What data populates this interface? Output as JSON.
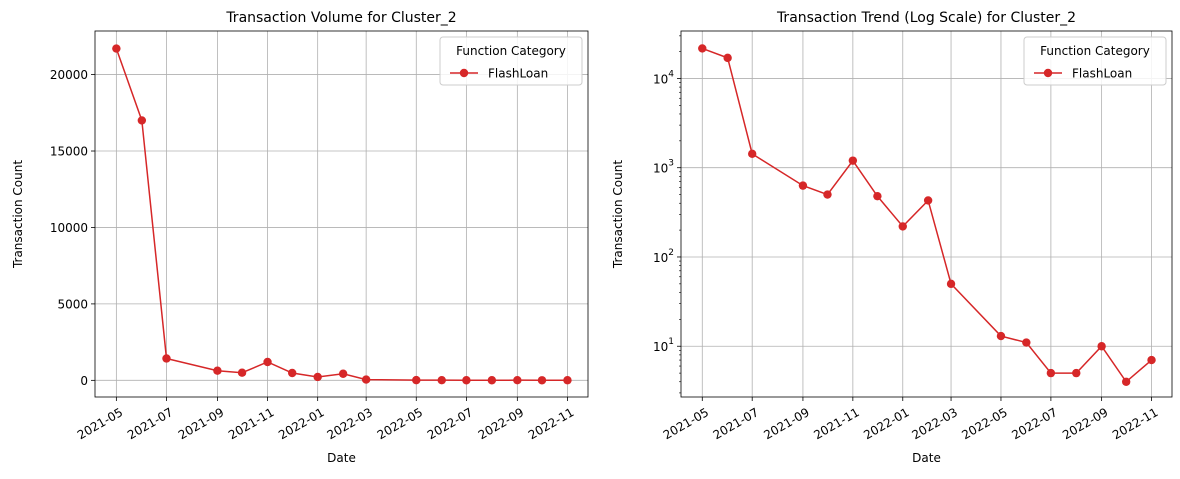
{
  "colors": {
    "series": "#d62728",
    "grid": "#b0b0b0",
    "axis": "#000000",
    "legend_border": "#cccccc"
  },
  "chart_data": [
    {
      "type": "line",
      "title": "Transaction Volume for Cluster_2",
      "xlabel": "Date",
      "ylabel": "Transaction Count",
      "xlim": [
        "2021-04-05",
        "2022-11-26"
      ],
      "ylim": [
        -1090,
        22850
      ],
      "yscale": "linear",
      "grid": true,
      "legend": {
        "title": "Function Category",
        "placement": "top-right"
      },
      "xticks": [
        "2021-05",
        "2021-07",
        "2021-09",
        "2021-11",
        "2022-01",
        "2022-03",
        "2022-05",
        "2022-07",
        "2022-09",
        "2022-11"
      ],
      "yticks": [
        0,
        5000,
        10000,
        15000,
        20000
      ],
      "ytick_labels": [
        "0",
        "5000",
        "10000",
        "15000",
        "20000"
      ],
      "x": [
        "2021-05-01",
        "2021-06-01",
        "2021-07-01",
        "2021-09-01",
        "2021-10-01",
        "2021-11-01",
        "2021-12-01",
        "2022-01-01",
        "2022-02-01",
        "2022-03-01",
        "2022-05-01",
        "2022-06-01",
        "2022-07-01",
        "2022-08-01",
        "2022-09-01",
        "2022-10-01",
        "2022-11-01"
      ],
      "series": [
        {
          "name": "FlashLoan",
          "values": [
            21700,
            17000,
            1430,
            630,
            500,
            1200,
            480,
            220,
            430,
            50,
            13,
            11,
            5,
            5,
            10,
            4,
            7
          ]
        }
      ]
    },
    {
      "type": "line",
      "title": "Transaction Trend (Log Scale) for Cluster_2",
      "xlabel": "Date",
      "ylabel": "Transaction Count",
      "xlim": [
        "2021-04-05",
        "2022-11-26"
      ],
      "ylim": [
        2.7,
        34000
      ],
      "yscale": "log",
      "grid": true,
      "legend": {
        "title": "Function Category",
        "placement": "top-right"
      },
      "xticks": [
        "2021-05",
        "2021-07",
        "2021-09",
        "2021-11",
        "2022-01",
        "2022-03",
        "2022-05",
        "2022-07",
        "2022-09",
        "2022-11"
      ],
      "yticks": [
        10,
        100,
        1000,
        10000
      ],
      "ytick_labels": [
        "10",
        "10",
        "10",
        "10"
      ],
      "ytick_exponents": [
        "1",
        "2",
        "3",
        "4"
      ],
      "x": [
        "2021-05-01",
        "2021-06-01",
        "2021-07-01",
        "2021-09-01",
        "2021-10-01",
        "2021-11-01",
        "2021-12-01",
        "2022-01-01",
        "2022-02-01",
        "2022-03-01",
        "2022-05-01",
        "2022-06-01",
        "2022-07-01",
        "2022-08-01",
        "2022-09-01",
        "2022-10-01",
        "2022-11-01"
      ],
      "series": [
        {
          "name": "FlashLoan",
          "values": [
            21700,
            17000,
            1430,
            630,
            500,
            1200,
            480,
            220,
            430,
            50,
            13,
            11,
            5,
            5,
            10,
            4,
            7
          ]
        }
      ]
    }
  ]
}
